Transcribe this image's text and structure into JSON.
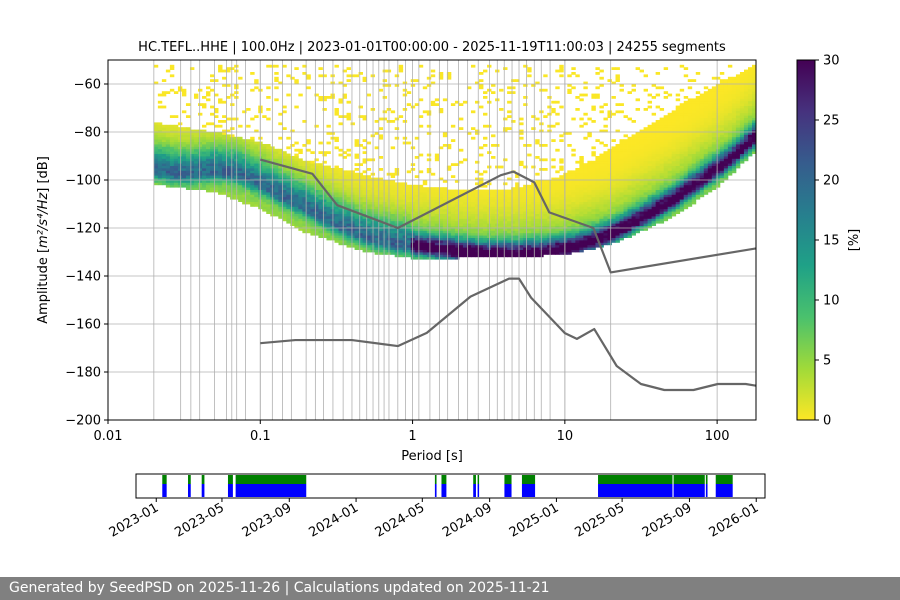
{
  "chart_data": [
    {
      "type": "heatmap",
      "title": "HC.TEFL..HHE | 100.0Hz | 2023-01-01T00:00:00 - 2025-11-19T11:00:03 | 24255 segments",
      "xlabel": "Period [s]",
      "ylabel_prefix": "Amplitude [",
      "ylabel_units": "m²/s⁴/Hz",
      "ylabel_suffix": "] [dB]",
      "x_scale": "log",
      "xlim": [
        0.01,
        180
      ],
      "ylim": [
        -200,
        -50
      ],
      "x_ticks": [
        0.01,
        0.1,
        1,
        10,
        100
      ],
      "x_tick_labels": [
        "0.01",
        "0.1",
        "1",
        "10",
        "100"
      ],
      "y_ticks": [
        -200,
        -180,
        -160,
        -140,
        -120,
        -100,
        -80,
        -60
      ],
      "y_tick_labels": [
        "−200",
        "−180",
        "−160",
        "−140",
        "−120",
        "−100",
        "−80",
        "−60"
      ],
      "grid": true,
      "colorbar": {
        "label": "[%]",
        "range": [
          0,
          30
        ],
        "ticks": [
          0,
          5,
          10,
          15,
          20,
          25,
          30
        ],
        "tick_labels": [
          "0",
          "5",
          "10",
          "15",
          "20",
          "25",
          "30"
        ],
        "colormap": "viridis"
      },
      "colormap_stops": [
        "#fde725",
        "#a0da39",
        "#4ac16d",
        "#1fa187",
        "#277f8e",
        "#365c8d",
        "#46327e",
        "#440154"
      ],
      "vertical_grid_periods": [
        0.02,
        0.03,
        0.035,
        0.04,
        0.05,
        0.06,
        0.065,
        0.07,
        0.08,
        0.1,
        0.12,
        0.14,
        0.16,
        0.2,
        0.23,
        0.26,
        0.3,
        0.35,
        0.4,
        0.45,
        0.5,
        0.55,
        0.6,
        0.65,
        0.7,
        0.8,
        0.9,
        1.1,
        1.3,
        1.5,
        1.7,
        2.0,
        2.3,
        2.7,
        3.2,
        3.6,
        4.0,
        4.5,
        5.0,
        5.6,
        6.3,
        7.0,
        8.0,
        10,
        20
      ],
      "series": [
        {
          "name": "",
          "kind": "noise-model-high",
          "color": "#666666",
          "x": [
            0.1,
            0.22,
            0.32,
            0.8,
            3.8,
            4.6,
            6.3,
            7.9,
            15.4,
            20.0,
            180
          ],
          "y": [
            -91.5,
            -97.4,
            -110.5,
            -120.0,
            -98.0,
            -96.5,
            -101.0,
            -113.5,
            -120.0,
            -138.5,
            -128.5
          ]
        },
        {
          "name": "",
          "kind": "noise-model-low",
          "color": "#666666",
          "x": [
            0.1,
            0.17,
            0.4,
            0.8,
            1.24,
            2.4,
            4.3,
            5.0,
            6.0,
            10.0,
            12.0,
            15.6,
            21.9,
            31.6,
            45.0,
            70.0,
            101,
            154,
            180
          ],
          "y": [
            -168.0,
            -166.7,
            -166.7,
            -169.2,
            -163.7,
            -148.6,
            -141.1,
            -141.1,
            -149.0,
            -163.8,
            -166.2,
            -162.1,
            -177.5,
            -185.0,
            -187.5,
            -187.5,
            -185.0,
            -185.0,
            -185.7
          ]
        }
      ],
      "distribution": {
        "mode_curve": {
          "x": [
            0.02,
            0.03,
            0.05,
            0.07,
            0.1,
            0.15,
            0.2,
            0.3,
            0.5,
            0.8,
            1.2,
            2.0,
            3.0,
            5.0,
            8.0,
            12.0,
            20.0,
            30.0,
            50.0,
            80.0,
            120.0,
            180.0
          ],
          "y": [
            -96.0,
            -98.0,
            -96.5,
            -97.5,
            -102.0,
            -108.0,
            -112.0,
            -118.0,
            -124.0,
            -127.0,
            -128.0,
            -130.0,
            -131.0,
            -131.0,
            -130.0,
            -128.0,
            -123.0,
            -117.0,
            -109.0,
            -100.0,
            -92.0,
            -82.0
          ]
        },
        "lower_edge": {
          "x": [
            0.02,
            0.05,
            0.1,
            0.2,
            0.5,
            1.0,
            2.0,
            5.0,
            10.0,
            20.0,
            50.0,
            100.0,
            180.0
          ],
          "y": [
            -102.0,
            -105.0,
            -112.0,
            -122.0,
            -130.0,
            -132.5,
            -132.5,
            -132.0,
            -131.0,
            -127.0,
            -116.0,
            -103.0,
            -88.0
          ]
        },
        "upper_edge": {
          "x": [
            0.02,
            0.05,
            0.1,
            0.2,
            0.5,
            1.0,
            2.0,
            4.0,
            8.0,
            15.0,
            30.0,
            60.0,
            100.0,
            180.0
          ],
          "y": [
            -76.0,
            -80.0,
            -84.0,
            -92.0,
            -98.0,
            -102.0,
            -104.0,
            -104.0,
            -100.0,
            -92.0,
            -80.0,
            -68.0,
            -60.0,
            -52.0
          ]
        },
        "sparse_upper_edge": -52.0
      }
    },
    {
      "type": "timeline",
      "x_tick_labels": [
        "2023-01",
        "2023-05",
        "2023-09",
        "2024-01",
        "2024-05",
        "2024-09",
        "2025-01",
        "2025-05",
        "2025-09",
        "2026-01"
      ],
      "x_ticks": [
        "2023-01-01",
        "2023-05-01",
        "2023-09-01",
        "2024-01-01",
        "2024-05-01",
        "2024-09-01",
        "2025-01-01",
        "2025-05-01",
        "2025-09-01",
        "2026-01-01"
      ],
      "xlim": [
        "2022-11-25",
        "2026-01-17"
      ],
      "row_colors": [
        "#008000",
        "#0000ff"
      ],
      "segments": [
        [
          "2023-01-12",
          "2023-01-20"
        ],
        [
          "2023-02-28",
          "2023-03-05"
        ],
        [
          "2023-03-25",
          "2023-03-30"
        ],
        [
          "2023-05-12",
          "2023-05-21"
        ],
        [
          "2023-05-26",
          "2023-10-02"
        ],
        [
          "2024-05-24",
          "2024-05-27"
        ],
        [
          "2024-06-05",
          "2024-06-14"
        ],
        [
          "2024-08-02",
          "2024-08-07"
        ],
        [
          "2024-08-10",
          "2024-08-12"
        ],
        [
          "2024-09-28",
          "2024-10-11"
        ],
        [
          "2024-10-30",
          "2024-11-23"
        ],
        [
          "2025-03-18",
          "2025-08-01"
        ],
        [
          "2025-08-03",
          "2025-09-29"
        ],
        [
          "2025-10-01",
          "2025-10-04"
        ],
        [
          "2025-10-19",
          "2025-11-19"
        ]
      ]
    }
  ],
  "footer": {
    "text": "Generated by SeedPSD on 2025-11-26 | Calculations updated on 2025-11-21"
  }
}
